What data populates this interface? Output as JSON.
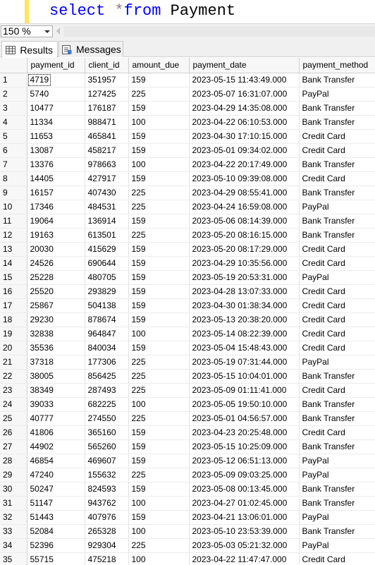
{
  "editor": {
    "query_keyword_select": "select",
    "query_operator": "*",
    "query_keyword_from": "from",
    "query_table": "Payment"
  },
  "zoom": {
    "value": "150 %"
  },
  "tabs": [
    {
      "label": "Results",
      "icon": "grid-icon",
      "active": true
    },
    {
      "label": "Messages",
      "icon": "messages-icon",
      "active": false
    }
  ],
  "colors": {
    "keyword": "#0000ff",
    "operator": "#808080",
    "change_bar": "#ffe55c"
  },
  "grid": {
    "columns": [
      "payment_id",
      "client_id",
      "amount_due",
      "payment_date",
      "payment_method"
    ],
    "rows": [
      [
        "1",
        "4719",
        "351957",
        "159",
        "2023-05-15 11:43:49.000",
        "Bank Transfer"
      ],
      [
        "2",
        "5740",
        "127425",
        "225",
        "2023-05-07 16:31:07.000",
        "PayPal"
      ],
      [
        "3",
        "10477",
        "176187",
        "159",
        "2023-04-29 14:35:08.000",
        "Bank Transfer"
      ],
      [
        "4",
        "11334",
        "988471",
        "100",
        "2023-04-22 06:10:53.000",
        "Bank Transfer"
      ],
      [
        "5",
        "11653",
        "465841",
        "159",
        "2023-04-30 17:10:15.000",
        "Credit Card"
      ],
      [
        "6",
        "13087",
        "458217",
        "159",
        "2023-05-01 09:34:02.000",
        "Credit Card"
      ],
      [
        "7",
        "13376",
        "978663",
        "100",
        "2023-04-22 20:17:49.000",
        "Bank Transfer"
      ],
      [
        "8",
        "14405",
        "427917",
        "159",
        "2023-05-10 09:39:08.000",
        "Credit Card"
      ],
      [
        "9",
        "16157",
        "407430",
        "225",
        "2023-04-29 08:55:41.000",
        "Bank Transfer"
      ],
      [
        "10",
        "17346",
        "484531",
        "225",
        "2023-04-24 16:59:08.000",
        "PayPal"
      ],
      [
        "11",
        "19064",
        "136914",
        "159",
        "2023-05-06 08:14:39.000",
        "Bank Transfer"
      ],
      [
        "12",
        "19163",
        "613501",
        "225",
        "2023-05-20 08:16:15.000",
        "Bank Transfer"
      ],
      [
        "13",
        "20030",
        "415629",
        "159",
        "2023-05-20 08:17:29.000",
        "Credit Card"
      ],
      [
        "14",
        "24526",
        "690644",
        "159",
        "2023-04-29 10:35:56.000",
        "Credit Card"
      ],
      [
        "15",
        "25228",
        "480705",
        "159",
        "2023-05-19 20:53:31.000",
        "PayPal"
      ],
      [
        "16",
        "25520",
        "293829",
        "159",
        "2023-04-28 13:07:33.000",
        "Credit Card"
      ],
      [
        "17",
        "25867",
        "504138",
        "159",
        "2023-04-30 01:38:34.000",
        "Credit Card"
      ],
      [
        "18",
        "29230",
        "878674",
        "159",
        "2023-05-13 20:38:20.000",
        "Credit Card"
      ],
      [
        "19",
        "32838",
        "964847",
        "100",
        "2023-05-14 08:22:39.000",
        "Credit Card"
      ],
      [
        "20",
        "35536",
        "840034",
        "159",
        "2023-05-04 15:48:43.000",
        "Credit Card"
      ],
      [
        "21",
        "37318",
        "177306",
        "225",
        "2023-05-19 07:31:44.000",
        "PayPal"
      ],
      [
        "22",
        "38005",
        "856425",
        "225",
        "2023-05-15 10:04:01.000",
        "Bank Transfer"
      ],
      [
        "23",
        "38349",
        "287493",
        "225",
        "2023-05-09 01:11:41.000",
        "Credit Card"
      ],
      [
        "24",
        "39033",
        "682225",
        "100",
        "2023-05-05 19:50:10.000",
        "Bank Transfer"
      ],
      [
        "25",
        "40777",
        "274550",
        "225",
        "2023-05-01 04:56:57.000",
        "Bank Transfer"
      ],
      [
        "26",
        "41806",
        "365160",
        "159",
        "2023-04-23 20:25:48.000",
        "Credit Card"
      ],
      [
        "27",
        "44902",
        "565260",
        "159",
        "2023-05-15 10:25:09.000",
        "Bank Transfer"
      ],
      [
        "28",
        "46854",
        "469607",
        "159",
        "2023-05-12 06:51:13.000",
        "PayPal"
      ],
      [
        "29",
        "47240",
        "155632",
        "225",
        "2023-05-09 09:03:25.000",
        "PayPal"
      ],
      [
        "30",
        "50247",
        "824593",
        "159",
        "2023-05-08 00:13:45.000",
        "Bank Transfer"
      ],
      [
        "31",
        "51147",
        "943762",
        "100",
        "2023-04-27 01:02:45.000",
        "Bank Transfer"
      ],
      [
        "32",
        "51443",
        "407976",
        "159",
        "2023-04-21 13:06:01.000",
        "PayPal"
      ],
      [
        "33",
        "52084",
        "265328",
        "100",
        "2023-05-10 23:53:39.000",
        "Bank Transfer"
      ],
      [
        "34",
        "52396",
        "929304",
        "225",
        "2023-05-03 05:21:32.000",
        "PayPal"
      ],
      [
        "35",
        "55715",
        "475218",
        "100",
        "2023-04-22 11:47:47.000",
        "Credit Card"
      ]
    ]
  }
}
